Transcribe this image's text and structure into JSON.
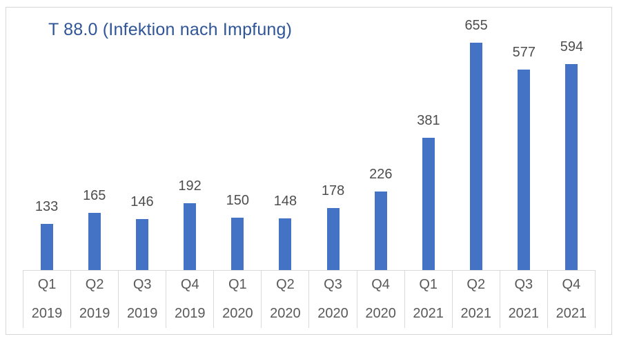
{
  "chart_data": {
    "type": "bar",
    "title": "T 88.0 (Infektion nach Impfung)",
    "categories": [
      {
        "quarter": "Q1",
        "year": "2019"
      },
      {
        "quarter": "Q2",
        "year": "2019"
      },
      {
        "quarter": "Q3",
        "year": "2019"
      },
      {
        "quarter": "Q4",
        "year": "2019"
      },
      {
        "quarter": "Q1",
        "year": "2020"
      },
      {
        "quarter": "Q2",
        "year": "2020"
      },
      {
        "quarter": "Q3",
        "year": "2020"
      },
      {
        "quarter": "Q4",
        "year": "2020"
      },
      {
        "quarter": "Q1",
        "year": "2021"
      },
      {
        "quarter": "Q2",
        "year": "2021"
      },
      {
        "quarter": "Q3",
        "year": "2021"
      },
      {
        "quarter": "Q4",
        "year": "2021"
      }
    ],
    "values": [
      133,
      165,
      146,
      192,
      150,
      148,
      178,
      226,
      381,
      655,
      577,
      594
    ],
    "xlabel": "",
    "ylabel": "",
    "ylim": [
      0,
      700
    ],
    "grid": false,
    "legend": false,
    "data_labels": true,
    "bar_color": "#4472C4"
  },
  "colors": {
    "bar": "#4472C4",
    "title": "#2F5597",
    "data_label": "#4D4D4D",
    "axis_label": "#595959",
    "axis_line": "#D9D9D9",
    "frame_border": "#D6D6D6",
    "background": "#FFFFFF"
  }
}
